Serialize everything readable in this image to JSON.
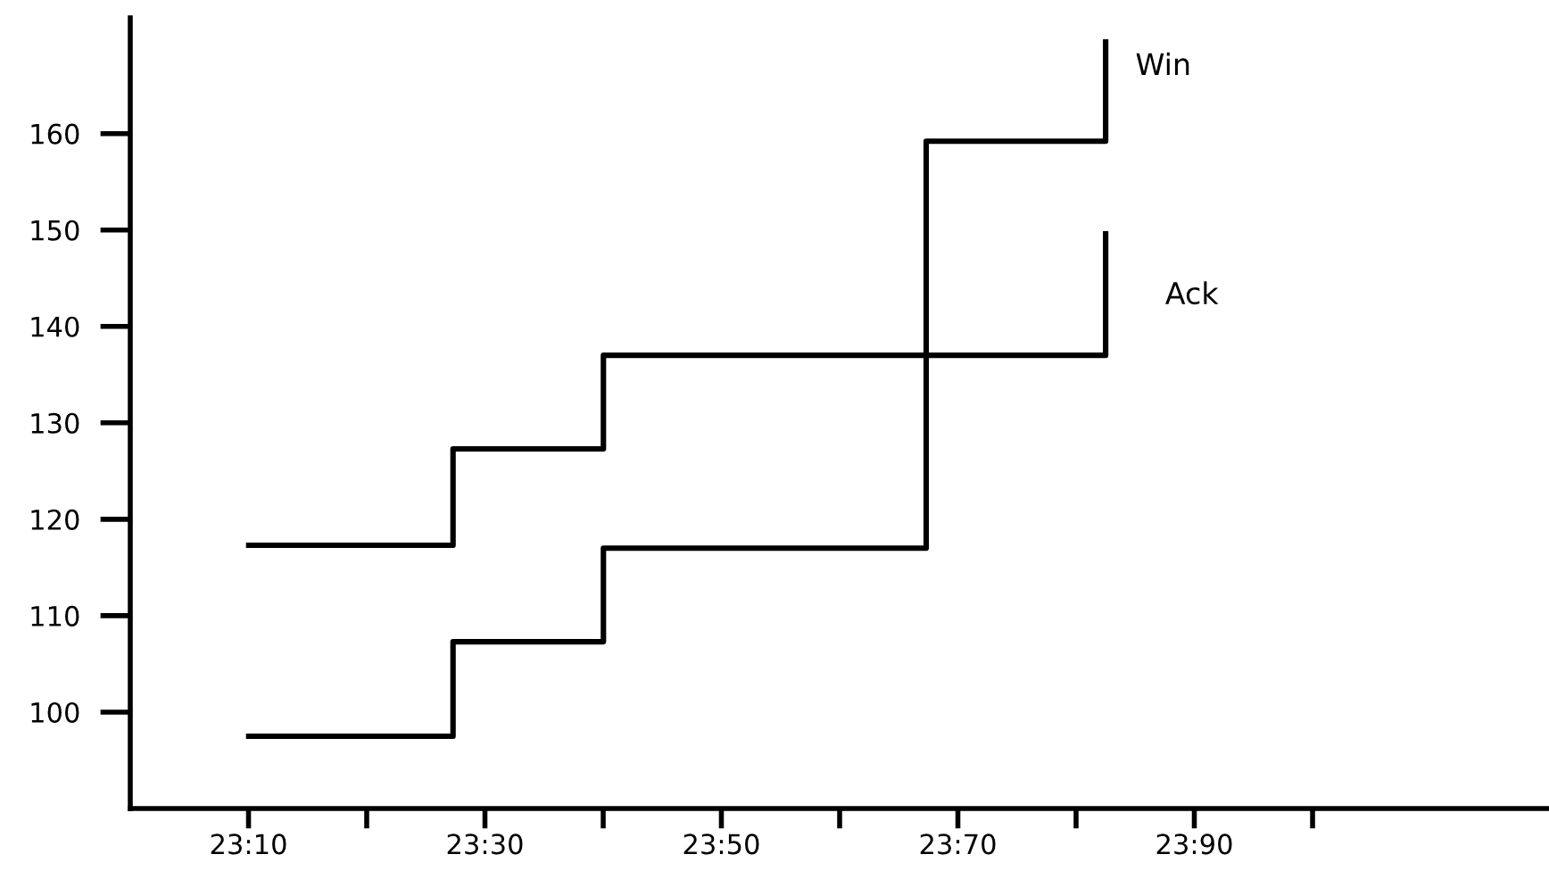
{
  "chart_data": {
    "type": "step",
    "series": [
      {
        "name": "Win",
        "color": "#000000",
        "x": [
          23.167,
          23.455,
          23.667,
          24.122,
          24.375,
          24.375
        ],
        "values": [
          97.5,
          107.3,
          117,
          159.2,
          159.2,
          169.5
        ]
      },
      {
        "name": "Ack",
        "color": "#000000",
        "x": [
          23.167,
          23.455,
          23.667,
          24.375,
          24.375
        ],
        "values": [
          117.3,
          127.3,
          137,
          137,
          149.6
        ]
      }
    ],
    "xlim": [
      23,
      25
    ],
    "ylim": [
      90,
      172
    ],
    "xticks": [
      {
        "value": 23.1667,
        "label": "23:10"
      },
      {
        "value": 23.3333,
        "label": null
      },
      {
        "value": 23.5,
        "label": "23:30"
      },
      {
        "value": 23.6667,
        "label": null
      },
      {
        "value": 23.8333,
        "label": "23:50"
      },
      {
        "value": 24.0,
        "label": null
      },
      {
        "value": 24.1667,
        "label": "23:70"
      },
      {
        "value": 24.3333,
        "label": null
      },
      {
        "value": 24.5,
        "label": "23:90"
      },
      {
        "value": 24.6667,
        "label": null
      }
    ],
    "yticks": [
      100,
      110,
      120,
      130,
      140,
      150,
      160
    ],
    "grid": false,
    "legend": false,
    "line_style": "solid",
    "marker": "none"
  }
}
